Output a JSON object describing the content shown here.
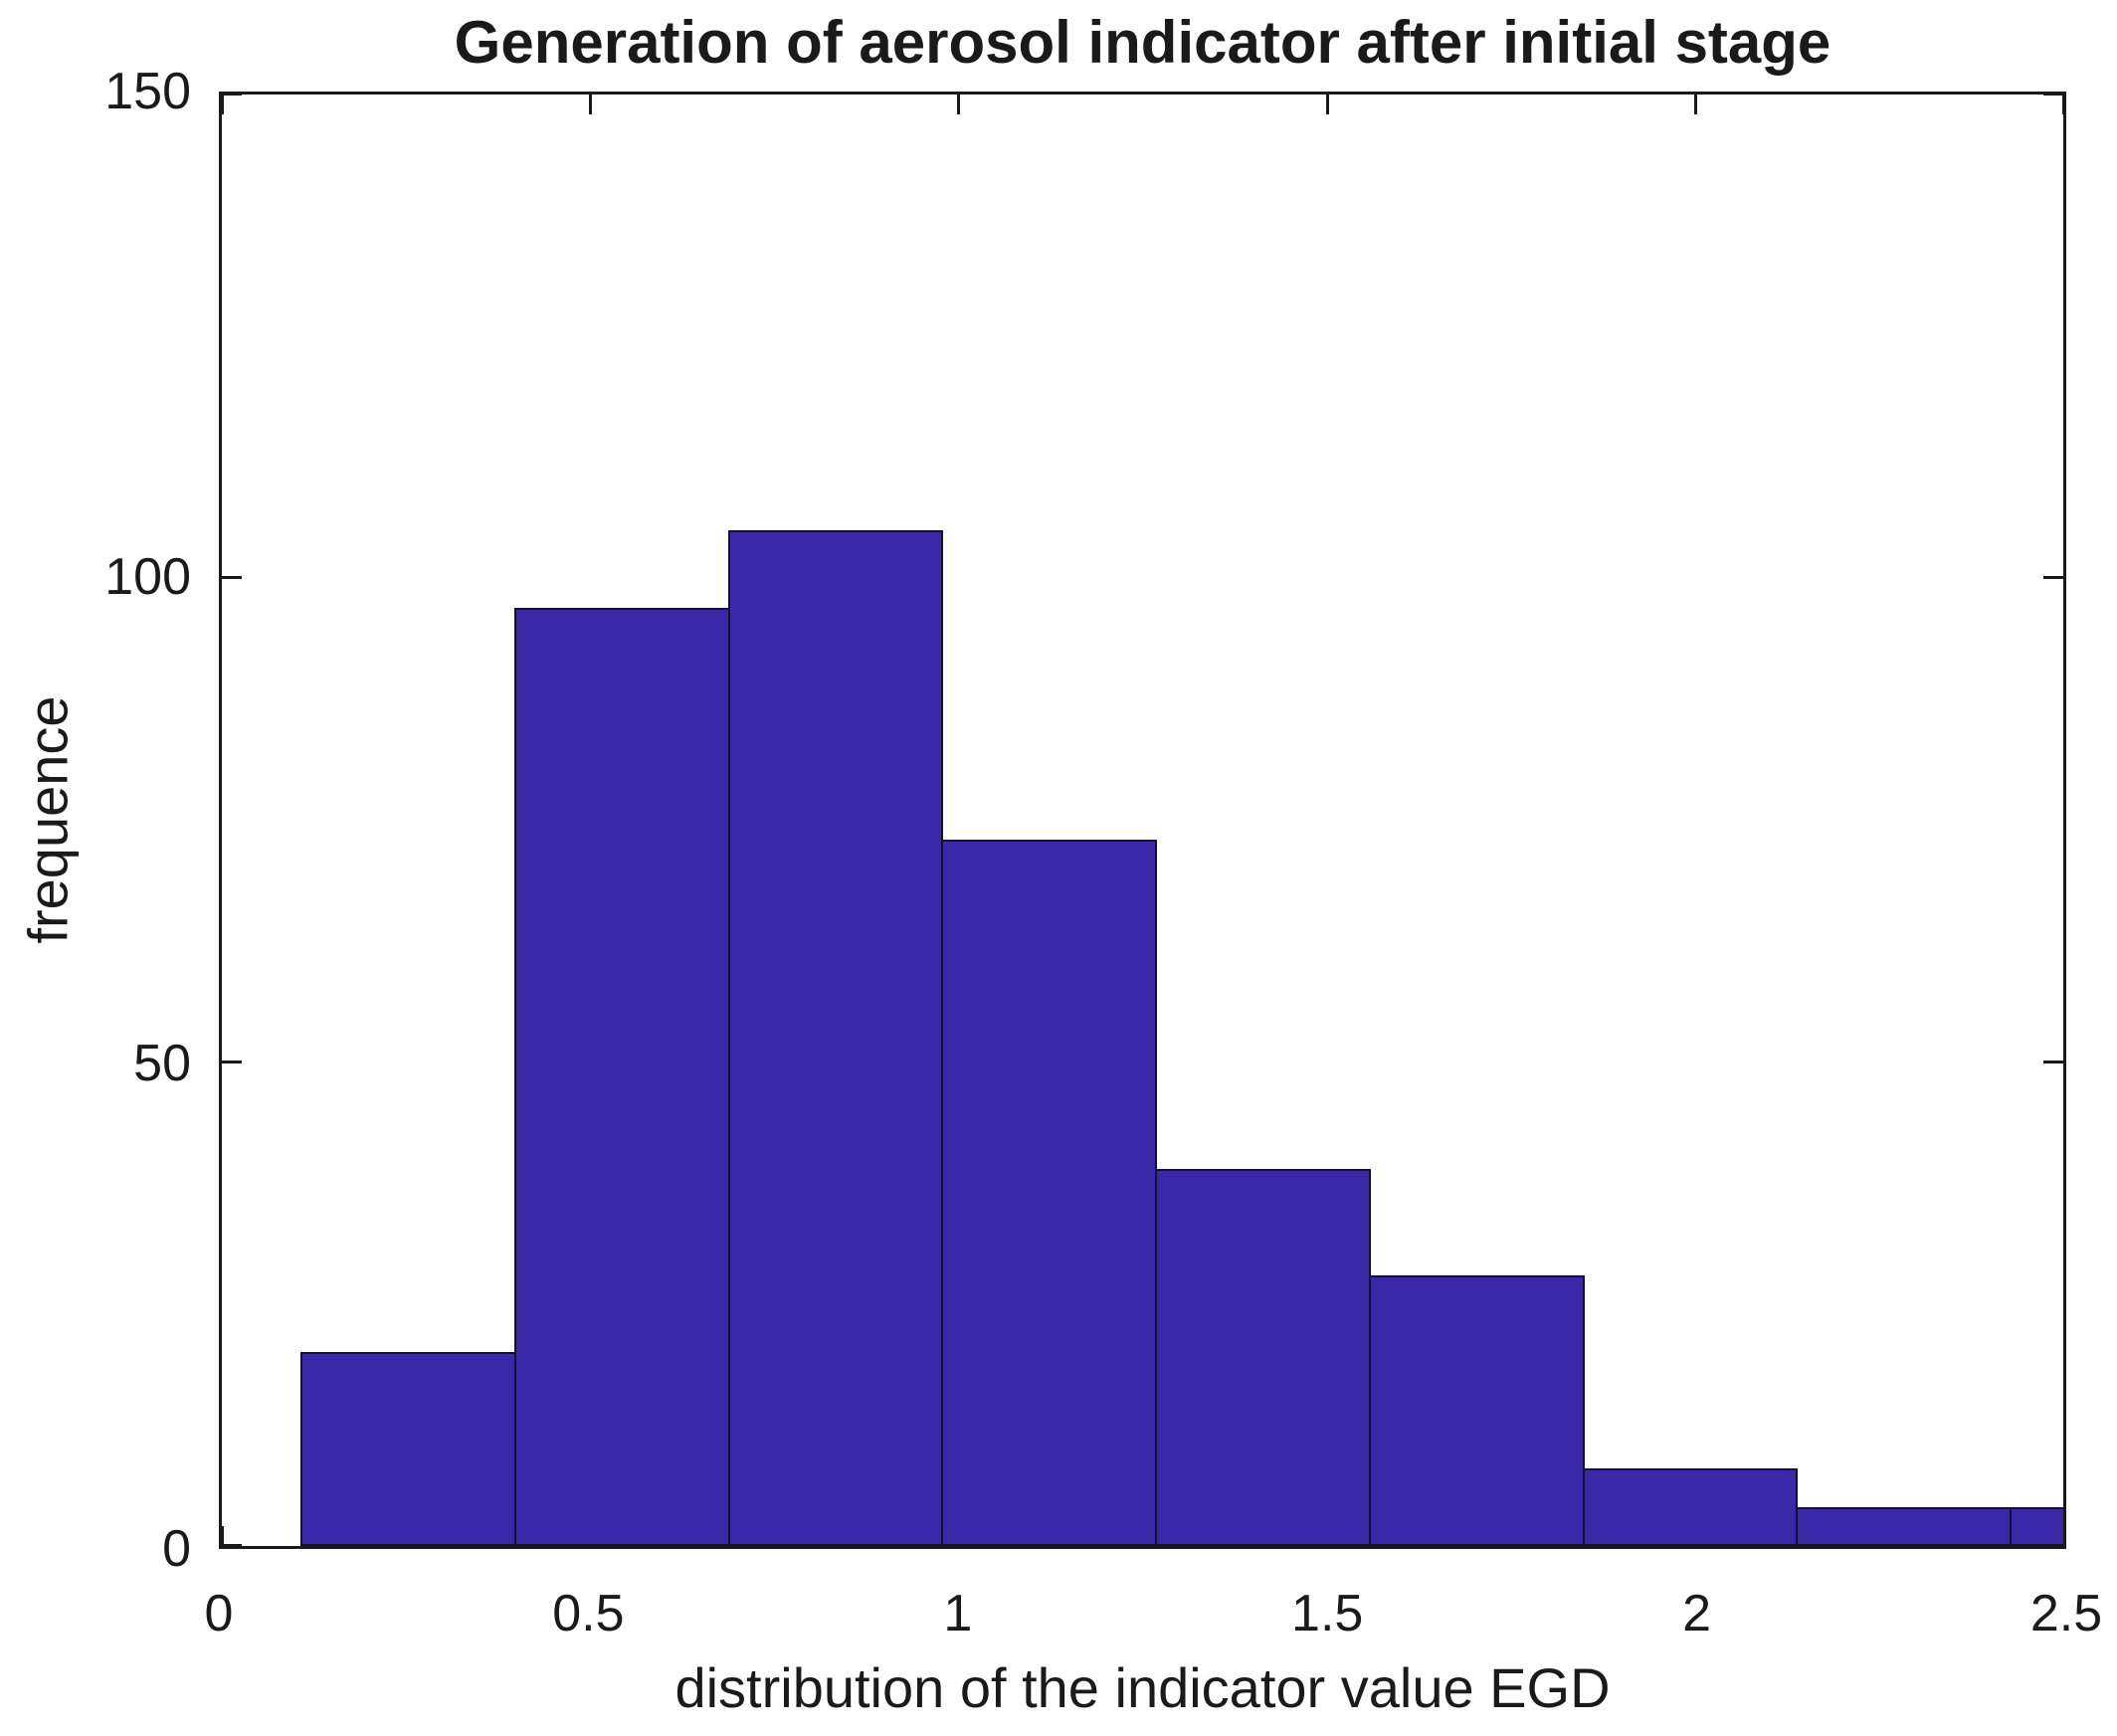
{
  "chart_data": {
    "type": "bar",
    "subtype": "histogram",
    "title": "Generation of aerosol indicator after initial stage",
    "xlabel": "distribution of the indicator value EGD",
    "ylabel": "frequence",
    "xlim": [
      0,
      2.5
    ],
    "ylim": [
      0,
      150
    ],
    "x_ticks": [
      {
        "value": 0,
        "label": "0"
      },
      {
        "value": 0.5,
        "label": "0.5"
      },
      {
        "value": 1,
        "label": "1"
      },
      {
        "value": 1.5,
        "label": "1.5"
      },
      {
        "value": 2,
        "label": "2"
      },
      {
        "value": 2.5,
        "label": "2.5"
      }
    ],
    "y_ticks": [
      {
        "value": 0,
        "label": "0"
      },
      {
        "value": 50,
        "label": "50"
      },
      {
        "value": 100,
        "label": "100"
      },
      {
        "value": 150,
        "label": "150"
      }
    ],
    "bin_edges": [
      0.107,
      0.397,
      0.687,
      0.977,
      1.267,
      1.557,
      1.847,
      2.137,
      2.427,
      2.717
    ],
    "frequencies": [
      20,
      97,
      105,
      73,
      39,
      28,
      8,
      4,
      4
    ],
    "note_last_bin_clipped_at": 2.5,
    "grid": false,
    "legend": null,
    "bar_color": "#3B28A8",
    "bar_edge_color": "#14122b",
    "axis_color": "#1a1a1a",
    "background_color": "#ffffff"
  }
}
